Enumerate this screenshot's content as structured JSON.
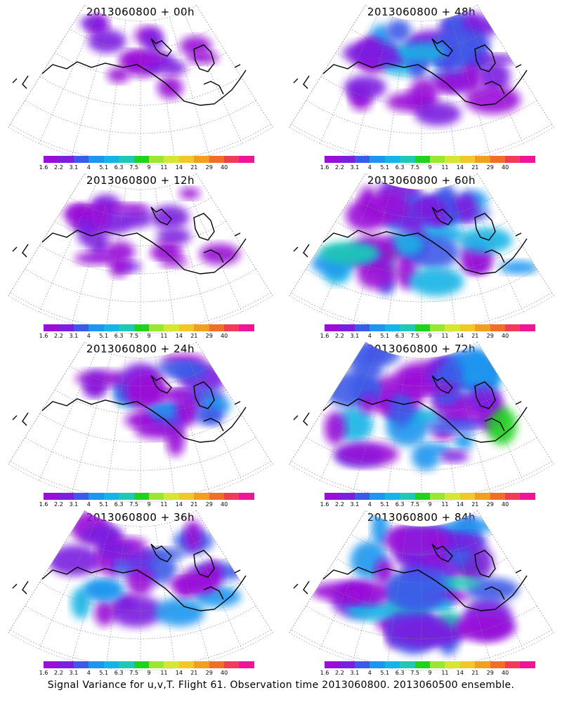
{
  "footer": "Signal Variance for u,v,T. Flight 61. Observation time 2013060800. 2013060500 ensemble.",
  "colorbar": {
    "colors": [
      "#9a0fd8",
      "#7a1ee0",
      "#3c5ae8",
      "#1e96f0",
      "#14b4e6",
      "#1ec8b4",
      "#1ed21e",
      "#9ae632",
      "#d7e632",
      "#f0c828",
      "#f0a01e",
      "#f06e28",
      "#f03c5a",
      "#f01496"
    ],
    "labels": [
      "1.6",
      "2.2",
      "3.1",
      "4",
      "5.1",
      "6.3",
      "7.5",
      "9",
      "11",
      "14",
      "21",
      "29",
      "40"
    ]
  },
  "chart_data": [
    {
      "type": "heatmap",
      "title": "2013060800  +  00h",
      "forecast_hour": 0,
      "level": 0.12
    },
    {
      "type": "heatmap",
      "title": "2013060800  +  48h",
      "forecast_hour": 48,
      "level": 0.55
    },
    {
      "type": "heatmap",
      "title": "2013060800  +  12h",
      "forecast_hour": 12,
      "level": 0.3
    },
    {
      "type": "heatmap",
      "title": "2013060800  +  60h",
      "forecast_hour": 60,
      "level": 0.65
    },
    {
      "type": "heatmap",
      "title": "2013060800  +  24h",
      "forecast_hour": 24,
      "level": 0.4
    },
    {
      "type": "heatmap",
      "title": "2013060800  +  72h",
      "forecast_hour": 72,
      "level": 0.75
    },
    {
      "type": "heatmap",
      "title": "2013060800  +  36h",
      "forecast_hour": 36,
      "level": 0.45
    },
    {
      "type": "heatmap",
      "title": "2013060800  +  84h",
      "forecast_hour": 84,
      "level": 0.85
    }
  ]
}
